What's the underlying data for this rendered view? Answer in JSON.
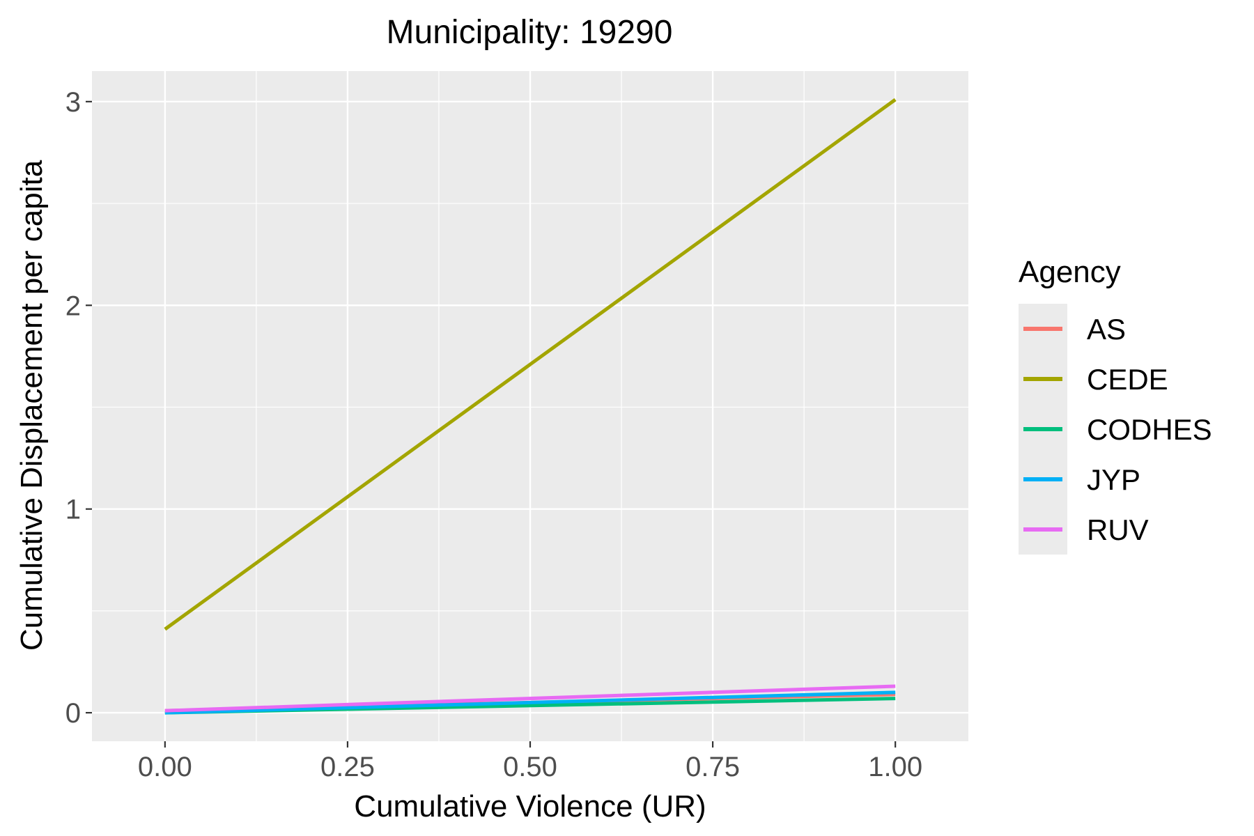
{
  "chart_data": {
    "type": "line",
    "title": "Municipality: 19290",
    "xlabel": "Cumulative Violence (UR)",
    "ylabel": "Cumulative Displacement per capita",
    "xlim": [
      -0.1,
      1.1
    ],
    "ylim": [
      -0.14,
      3.15
    ],
    "x_ticks": [
      0.0,
      0.25,
      0.5,
      0.75,
      1.0
    ],
    "x_tick_labels": [
      "0.00",
      "0.25",
      "0.50",
      "0.75",
      "1.00"
    ],
    "y_ticks": [
      0,
      1,
      2,
      3
    ],
    "y_tick_labels": [
      "0",
      "1",
      "2",
      "3"
    ],
    "grid": true,
    "legend_title": "Agency",
    "legend_position": "right",
    "series": [
      {
        "name": "AS",
        "color": "#F8766D",
        "x": [
          0,
          1
        ],
        "y": [
          0.01,
          0.09
        ]
      },
      {
        "name": "CEDE",
        "color": "#A3A500",
        "x": [
          0,
          1
        ],
        "y": [
          0.41,
          3.01
        ]
      },
      {
        "name": "CODHES",
        "color": "#00BF7D",
        "x": [
          0,
          1
        ],
        "y": [
          0.0,
          0.07
        ]
      },
      {
        "name": "JYP",
        "color": "#00B0F6",
        "x": [
          0,
          1
        ],
        "y": [
          0.0,
          0.1
        ]
      },
      {
        "name": "RUV",
        "color": "#E76BF3",
        "x": [
          0,
          1
        ],
        "y": [
          0.01,
          0.13
        ]
      }
    ]
  }
}
